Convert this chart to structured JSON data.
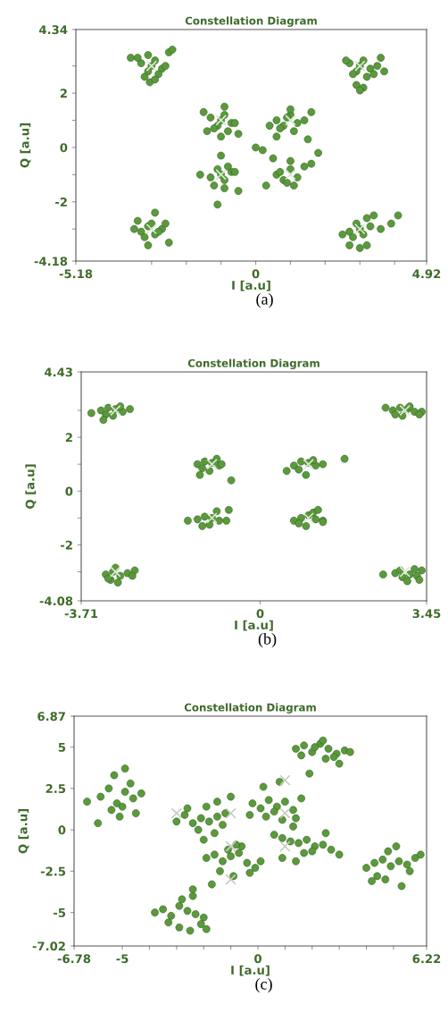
{
  "chart_data": [
    {
      "type": "scatter",
      "title": "Constellation Diagram",
      "xlabel": "I [a.u]",
      "ylabel": "Q [a.u]",
      "annotations": [
        "(a)"
      ],
      "xlim": [
        -5.18,
        4.92
      ],
      "ylim": [
        -4.18,
        4.34
      ],
      "xticks": [
        -5.18,
        {
          "value": -3,
          "label": null
        },
        {
          "value": -2,
          "label": null
        },
        {
          "value": -1,
          "label": null
        },
        0,
        {
          "value": 1,
          "label": null
        },
        {
          "value": 2,
          "label": null
        },
        {
          "value": 3,
          "label": null
        },
        {
          "value": 4,
          "label": null
        },
        4.92
      ],
      "yticks": [
        -4.18,
        {
          "value": -3,
          "label": null
        },
        -2,
        {
          "value": -1,
          "label": null
        },
        0,
        {
          "value": 1,
          "label": null
        },
        2,
        {
          "value": 3,
          "label": null
        },
        4.34
      ],
      "series": [
        {
          "color": "#5b9a3c",
          "marker": "circle",
          "x": [
            -3.3,
            -3.1,
            -2.9,
            -2.7,
            -3.2,
            -3.0,
            -2.8,
            -3.4,
            -2.6,
            -3.05,
            -2.5,
            -2.4,
            -3.6,
            -3.1,
            -2.9,
            2.7,
            2.9,
            3.1,
            3.3,
            2.8,
            3.0,
            3.2,
            3.5,
            2.6,
            3.1,
            3.6,
            3.7,
            2.9,
            3.0,
            3.4,
            -1.3,
            -1.1,
            -0.9,
            -0.7,
            -1.2,
            -1.0,
            -0.8,
            -1.5,
            -0.6,
            -1.0,
            -1.4,
            -0.5,
            -0.9,
            0.6,
            0.8,
            1.0,
            1.2,
            0.7,
            0.9,
            1.1,
            1.4,
            0.4,
            1.0,
            1.6,
            1.5,
            0.6,
            -1.3,
            -1.1,
            -0.9,
            -0.7,
            -1.2,
            -1.0,
            -0.8,
            -0.9,
            -0.6,
            -1.0,
            -1.6,
            -0.5,
            -1.1,
            0.6,
            0.8,
            1.0,
            1.2,
            0.7,
            0.9,
            1.1,
            1.4,
            0.3,
            1.0,
            1.6,
            1.8,
            0.5,
            0.0,
            0.2,
            -3.3,
            -3.1,
            -2.9,
            -2.7,
            -3.2,
            -3.0,
            -2.8,
            -3.5,
            -2.5,
            -3.1,
            -2.6,
            -3.4,
            -2.9,
            2.7,
            2.9,
            3.1,
            3.3,
            2.8,
            3.0,
            3.2,
            3.6,
            2.5,
            3.4,
            3.9,
            4.1,
            2.7,
            3.2,
            3.0
          ],
          "values": [
            3.1,
            2.8,
            3.2,
            2.9,
            2.6,
            3.0,
            2.7,
            3.3,
            3.0,
            2.4,
            3.5,
            3.6,
            3.3,
            3.4,
            2.5,
            3.1,
            2.8,
            3.2,
            2.9,
            2.7,
            3.0,
            2.6,
            3.0,
            3.2,
            2.2,
            3.3,
            2.8,
            2.3,
            2.1,
            2.7,
            1.1,
            0.8,
            1.2,
            0.9,
            0.7,
            1.0,
            0.6,
            1.3,
            0.9,
            0.4,
            0.6,
            0.5,
            1.5,
            1.0,
            0.8,
            1.2,
            0.9,
            0.7,
            1.1,
            0.6,
            1.0,
            0.8,
            1.4,
            1.3,
            0.3,
            0.4,
            -1.1,
            -0.8,
            -1.2,
            -0.9,
            -1.4,
            -1.0,
            -0.7,
            -1.5,
            -0.9,
            -0.3,
            -1.0,
            -1.6,
            -2.1,
            -1.0,
            -1.2,
            -0.8,
            -1.1,
            -0.9,
            -1.3,
            -1.4,
            -0.7,
            -1.4,
            -0.5,
            -0.6,
            -0.2,
            -0.4,
            0.0,
            -0.1,
            -3.1,
            -2.9,
            -3.2,
            -3.0,
            -3.3,
            -2.8,
            -3.1,
            -3.0,
            -3.5,
            -3.6,
            -2.8,
            -2.7,
            -2.4,
            -3.1,
            -2.8,
            -3.2,
            -2.9,
            -3.3,
            -3.0,
            -2.6,
            -3.0,
            -3.2,
            -2.5,
            -2.8,
            -2.5,
            -3.6,
            -3.6,
            -3.7
          ]
        },
        {
          "color": "#d6ead0",
          "marker": "cross",
          "x": [
            -3,
            3,
            -1,
            1,
            -1,
            1,
            -3,
            3
          ],
          "values": [
            3,
            3,
            1,
            1,
            -1,
            -1,
            -3,
            -3
          ]
        }
      ]
    },
    {
      "type": "scatter",
      "title": "Constellation Diagram",
      "xlabel": "I [a.u]",
      "ylabel": "Q [a.u]",
      "annotations": [
        "(b)"
      ],
      "xlim": [
        -3.71,
        3.45
      ],
      "ylim": [
        -4.08,
        4.43
      ],
      "xticks": [
        -3.71,
        0,
        3.45
      ],
      "yticks": [
        -4.08,
        {
          "value": -3,
          "label": null
        },
        -2,
        {
          "value": -1,
          "label": null
        },
        0,
        {
          "value": 1,
          "label": null
        },
        2,
        {
          "value": 3,
          "label": null
        },
        4.43
      ],
      "series": [
        {
          "color": "#5b9a3c",
          "marker": "circle",
          "x": [
            -3.3,
            -3.15,
            -3.0,
            -2.85,
            -2.7,
            -3.2,
            -3.05,
            -2.9,
            -3.5,
            -3.25,
            2.75,
            2.9,
            3.05,
            3.2,
            3.35,
            2.8,
            2.95,
            3.1,
            2.6,
            3.3,
            -1.3,
            -1.15,
            -1.0,
            -0.85,
            -0.8,
            -1.2,
            -1.05,
            -0.9,
            -1.25,
            -0.6,
            0.7,
            0.85,
            1.0,
            1.15,
            1.3,
            0.8,
            0.95,
            1.1,
            0.55,
            1.75,
            -1.5,
            -1.3,
            -1.15,
            -1.0,
            -0.85,
            -0.7,
            -1.2,
            -1.05,
            -0.9,
            -0.65,
            0.7,
            0.85,
            1.0,
            1.15,
            1.3,
            0.8,
            0.95,
            1.1,
            1.2,
            1.3,
            -3.2,
            -3.05,
            -2.9,
            -2.75,
            -3.1,
            -2.95,
            -3.0,
            -2.6,
            -2.65,
            -3.15,
            2.8,
            2.95,
            3.1,
            3.25,
            3.35,
            2.9,
            3.05,
            3.2,
            2.55,
            3.3
          ],
          "values": [
            3.0,
            3.1,
            3.05,
            2.95,
            3.05,
            2.85,
            2.8,
            3.15,
            2.9,
            2.65,
            3.0,
            3.1,
            3.05,
            2.95,
            2.95,
            2.85,
            2.8,
            3.15,
            3.1,
            2.85,
            1.0,
            1.1,
            1.05,
            0.95,
            1.0,
            0.85,
            0.75,
            1.2,
            0.6,
            0.4,
            0.95,
            1.1,
            1.05,
            0.95,
            1.0,
            0.8,
            0.6,
            1.15,
            0.75,
            1.2,
            -1.1,
            -1.05,
            -0.95,
            -1.0,
            -1.1,
            -1.1,
            -1.3,
            -1.25,
            -0.75,
            -0.7,
            -1.1,
            -1.0,
            -0.9,
            -1.05,
            -1.1,
            -1.2,
            -1.3,
            -0.8,
            -0.7,
            -1.15,
            -3.1,
            -3.0,
            -3.15,
            -3.05,
            -3.3,
            -3.4,
            -2.85,
            -2.95,
            -3.15,
            -3.25,
            -3.05,
            -3.2,
            -3.1,
            -3.15,
            -2.95,
            -2.95,
            -3.35,
            -2.9,
            -3.1,
            -3.3
          ]
        },
        {
          "color": "#d6ead0",
          "marker": "cross",
          "x": [
            -3,
            3,
            -1,
            1,
            -1,
            1,
            -3,
            3
          ],
          "values": [
            3,
            3,
            1,
            1,
            -1,
            -1,
            -3,
            -3
          ]
        }
      ]
    },
    {
      "type": "scatter",
      "title": "Constellation Diagram",
      "xlabel": "I [a.u]",
      "ylabel": "Q [a.u]",
      "annotations": [
        "(c)"
      ],
      "xlim": [
        -6.78,
        6.22
      ],
      "ylim": [
        -7.02,
        6.87
      ],
      "xticks": [
        -6.78,
        -5,
        {
          "value": -4,
          "label": null
        },
        {
          "value": -3,
          "label": null
        },
        {
          "value": -2,
          "label": null
        },
        {
          "value": -1,
          "label": null
        },
        0,
        {
          "value": 1,
          "label": null
        },
        {
          "value": 2,
          "label": null
        },
        {
          "value": 3,
          "label": null
        },
        {
          "value": 4,
          "label": null
        },
        {
          "value": 5,
          "label": null
        },
        6.22
      ],
      "yticks": [
        -7.02,
        -5,
        -2.5,
        0,
        2.5,
        5,
        6.87
      ],
      "series": [
        {
          "color": "#5b9a3c",
          "marker": "circle",
          "x": [
            1.4,
            1.7,
            2.0,
            2.3,
            2.6,
            2.9,
            3.2,
            1.6,
            2.1,
            2.5,
            2.8,
            3.4,
            1.9,
            2.4,
            3.0,
            -5.8,
            -5.5,
            -5.2,
            -4.9,
            -4.6,
            -4.3,
            -5.4,
            -5.0,
            -4.7,
            -6.3,
            -5.9,
            -4.9,
            -5.1,
            -4.5,
            -5.3,
            -3.0,
            -2.7,
            -2.4,
            -2.1,
            -1.8,
            -1.5,
            -1.3,
            -2.6,
            -2.2,
            -1.9,
            -1.6,
            -2.0,
            -1.2,
            -1.0,
            -1.5,
            -0.2,
            0.1,
            0.4,
            0.7,
            1.0,
            1.3,
            0.3,
            0.6,
            0.9,
            1.6,
            0.2,
            0.8,
            -0.3,
            1.4,
            0.6,
            0.9,
            1.2,
            1.5,
            1.8,
            2.1,
            2.4,
            2.7,
            1.3,
            1.7,
            2.0,
            2.5,
            0.9,
            1.4,
            3.0,
            -1.9,
            -1.6,
            -1.3,
            -1.0,
            -0.7,
            -0.4,
            -0.1,
            -1.4,
            -0.9,
            -0.6,
            -0.3,
            -1.1,
            -0.8,
            0.1,
            -1.7,
            4.0,
            4.3,
            4.6,
            4.9,
            5.2,
            5.5,
            5.8,
            4.4,
            4.8,
            5.1,
            5.6,
            6.0,
            4.7,
            5.3,
            4.2,
            -3.8,
            -3.5,
            -3.2,
            -2.9,
            -2.6,
            -2.3,
            -2.0,
            -3.3,
            -2.8,
            -2.4,
            -2.1,
            -2.5,
            -2.9,
            -1.9,
            -2.4
          ],
          "values": [
            4.9,
            5.1,
            4.7,
            5.2,
            4.9,
            4.6,
            4.8,
            4.5,
            5.0,
            4.3,
            4.4,
            4.7,
            3.4,
            5.4,
            4.0,
            2.0,
            2.5,
            1.6,
            2.3,
            1.9,
            2.2,
            1.2,
            1.4,
            2.8,
            1.7,
            0.4,
            3.7,
            0.8,
            1.0,
            3.3,
            0.5,
            0.9,
            0.4,
            0.7,
            0.5,
            0.8,
            0.3,
            1.3,
            0.0,
            1.4,
            -0.2,
            -0.6,
            1.0,
            2.0,
            1.7,
            1.6,
            1.3,
            1.8,
            1.4,
            1.7,
            1.2,
            0.8,
            1.1,
            0.6,
            1.9,
            2.6,
            2.9,
            0.9,
            0.7,
            -0.3,
            -0.5,
            -0.7,
            -0.8,
            -0.6,
            -1.0,
            -0.9,
            -1.2,
            0.2,
            -1.4,
            -1.3,
            -0.2,
            -1.7,
            -1.9,
            -1.5,
            -1.7,
            -1.5,
            -1.9,
            -1.6,
            -1.4,
            -2.0,
            -2.3,
            -2.5,
            -2.8,
            -1.0,
            -2.6,
            -1.2,
            -0.9,
            -1.9,
            -3.3,
            -2.3,
            -2.0,
            -1.8,
            -2.2,
            -1.9,
            -2.1,
            -1.7,
            -2.8,
            -1.3,
            -1.0,
            -2.5,
            -1.5,
            -3.0,
            -3.4,
            -3.1,
            -5.0,
            -4.8,
            -5.2,
            -4.6,
            -4.9,
            -5.1,
            -5.3,
            -5.6,
            -4.2,
            -4.0,
            -5.7,
            -6.1,
            -5.9,
            -6.0,
            -3.6
          ]
        },
        {
          "color": "#c4ccc0",
          "marker": "cross",
          "x": [
            -3,
            -1,
            1,
            1,
            1,
            -1,
            -1
          ],
          "values": [
            1,
            1,
            3,
            1,
            -1,
            -1,
            -3
          ]
        }
      ]
    }
  ]
}
